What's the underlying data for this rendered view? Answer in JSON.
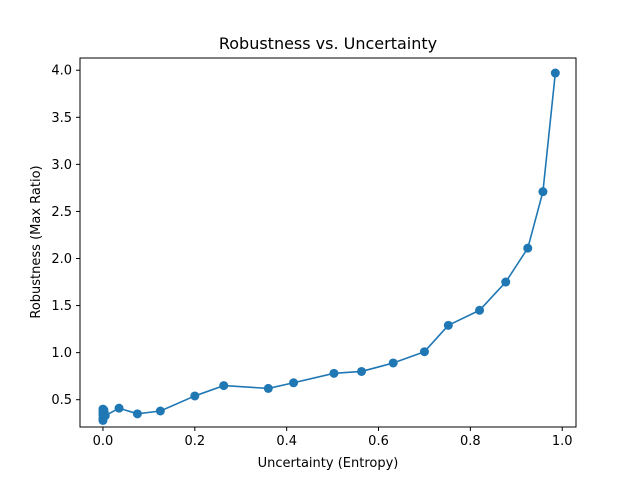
{
  "colors": {
    "series": "#1f77b4",
    "axis": "#000000",
    "background": "#ffffff"
  },
  "chart_data": {
    "type": "line",
    "title": "Robustness vs. Uncertainty",
    "xlabel": "Uncertainty (Entropy)",
    "ylabel": "Robustness (Max Ratio)",
    "xlim": [
      -0.05,
      1.03
    ],
    "ylim": [
      0.21,
      4.13
    ],
    "xticks": [
      0.0,
      0.2,
      0.4,
      0.6,
      0.8,
      1.0
    ],
    "xtick_labels": [
      "0.0",
      "0.2",
      "0.4",
      "0.6",
      "0.8",
      "1.0"
    ],
    "yticks": [
      0.5,
      1.0,
      1.5,
      2.0,
      2.5,
      3.0,
      3.5,
      4.0
    ],
    "ytick_labels": [
      "0.5",
      "1.0",
      "1.5",
      "2.0",
      "2.5",
      "3.0",
      "3.5",
      "4.0"
    ],
    "grid": false,
    "marker": "circle",
    "series": [
      {
        "x": [
          0.0,
          0.0,
          0.0,
          0.0,
          0.0,
          0.001,
          0.002,
          0.003,
          0.005,
          0.035,
          0.075,
          0.125,
          0.2,
          0.263,
          0.36,
          0.415,
          0.503,
          0.563,
          0.632,
          0.7,
          0.752,
          0.82,
          0.877,
          0.925,
          0.958,
          0.985
        ],
        "y": [
          0.28,
          0.3,
          0.34,
          0.37,
          0.4,
          0.32,
          0.39,
          0.36,
          0.33,
          0.41,
          0.35,
          0.38,
          0.54,
          0.65,
          0.62,
          0.68,
          0.78,
          0.8,
          0.89,
          1.01,
          1.29,
          1.45,
          1.75,
          2.11,
          2.71,
          3.97
        ]
      }
    ]
  }
}
